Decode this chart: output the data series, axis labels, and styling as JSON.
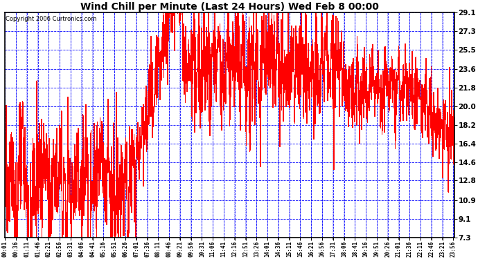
{
  "title": "Wind Chill per Minute (Last 24 Hours) Wed Feb 8 00:00",
  "copyright": "Copyright 2006 Curtronics.com",
  "yticks": [
    7.3,
    9.1,
    10.9,
    12.8,
    14.6,
    16.4,
    18.2,
    20.0,
    21.8,
    23.6,
    25.5,
    27.3,
    29.1
  ],
  "ymin": 7.3,
  "ymax": 29.1,
  "line_color": "#ff0000",
  "grid_color": "#0000ff",
  "bg_color": "#ffffff",
  "plot_bg": "#ffffff",
  "border_color": "#000000",
  "title_color": "#000000",
  "xtick_start": 1,
  "xtick_step": 35,
  "figwidth": 6.9,
  "figheight": 3.75,
  "dpi": 100
}
